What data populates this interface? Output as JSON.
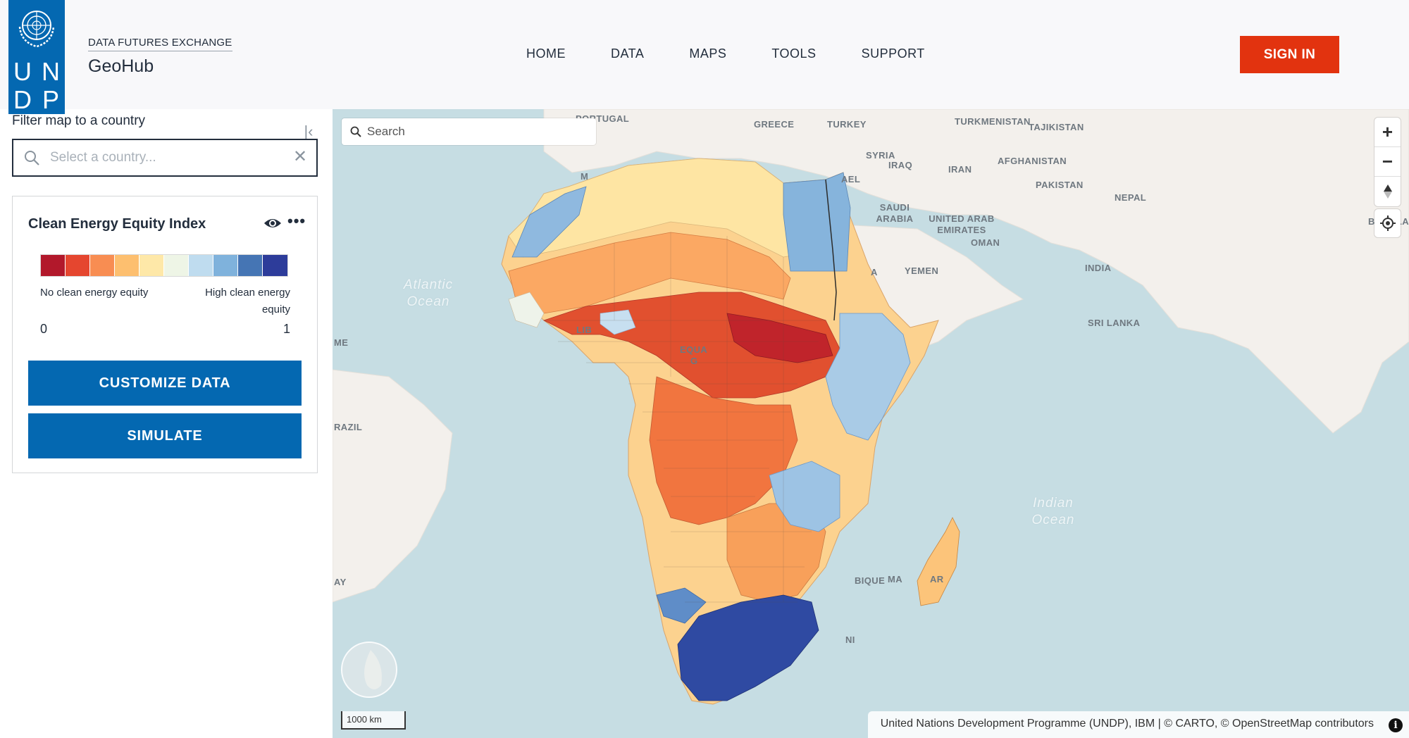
{
  "header": {
    "brand_sup": "DATA FUTURES EXCHANGE",
    "brand_name": "GeoHub",
    "logo_letters": [
      "U",
      "N",
      "D",
      "P"
    ],
    "nav": [
      "HOME",
      "DATA",
      "MAPS",
      "TOOLS",
      "SUPPORT"
    ],
    "signin_label": "SIGN IN",
    "colors": {
      "logo": "#0468b1",
      "signin": "#e2330f"
    }
  },
  "sidebar": {
    "filter_label": "Filter map to a country",
    "country_placeholder": "Select a country...",
    "layer": {
      "title": "Clean Energy Equity Index",
      "legend_colors": [
        "#b2182b",
        "#e5462f",
        "#f88d52",
        "#fdbf6f",
        "#fee8a8",
        "#eef5e6",
        "#bfdcef",
        "#7fb2dc",
        "#4575b4",
        "#2d3c9a"
      ],
      "low_label": "No clean energy equity",
      "high_label": "High clean energy equity",
      "min_value": "0",
      "max_value": "1",
      "customize_label": "CUSTOMIZE DATA",
      "simulate_label": "SIMULATE"
    }
  },
  "map": {
    "search_placeholder": "Search",
    "scale_label": "1000 km",
    "attribution": "United Nations Development Programme (UNDP), IBM | © CARTO, © OpenStreetMap contributors",
    "labels": [
      "PORTUGAL",
      "GREECE",
      "TURKEY",
      "TURKMENISTAN",
      "TAJIKISTAN",
      "SYRIA",
      "IRAQ",
      "IRAN",
      "AFGHANISTAN",
      "PAKISTAN",
      "NEPAL",
      "BANGLAD",
      "SAUDI ARABIA",
      "UNITED ARAB EMIRATES",
      "OMAN",
      "INDIA",
      "YEMEN",
      "SRI LANKA",
      "ME",
      "RAZIL",
      "AY",
      "EQUA",
      "G",
      "LIB",
      "M",
      "A",
      "AEL",
      "BIQUE",
      "MA",
      "AR",
      "NI"
    ],
    "oceans": [
      "Atlantic Ocean",
      "Indian Ocean"
    ]
  }
}
